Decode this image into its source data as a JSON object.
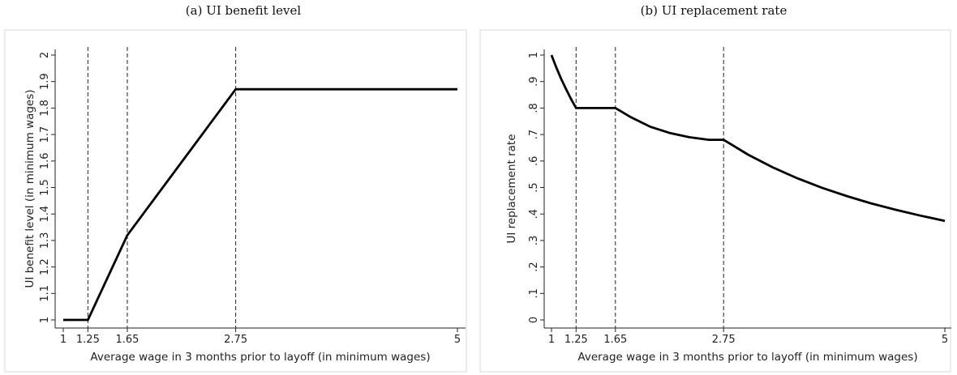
{
  "chart_data": [
    {
      "type": "line",
      "title": "(a) UI benefit level",
      "xlabel": "Average wage in 3 months prior to layoff (in minimum wages)",
      "ylabel": "UI benefit level (in minimum wages)",
      "xlim": [
        1,
        5
      ],
      "ylim": [
        1,
        2
      ],
      "x_ticks": [
        "1",
        "1.25",
        "1.65",
        "2.75",
        "5"
      ],
      "y_ticks": [
        "1",
        "1.1",
        "1.2",
        "1.3",
        "1.4",
        "1.5",
        "1.6",
        "1.7",
        "1.8",
        "1.9",
        "2"
      ],
      "vlines": [
        1.25,
        1.65,
        2.75
      ],
      "grid": false,
      "series": [
        {
          "points": [
            [
              1,
              1.0
            ],
            [
              1.25,
              1.0
            ],
            [
              1.65,
              1.32
            ],
            [
              2.75,
              1.871
            ],
            [
              5,
              1.871
            ]
          ]
        }
      ]
    },
    {
      "type": "line",
      "title": "(b) UI replacement rate",
      "xlabel": "Average wage in 3 months prior to layoff (in minimum wages)",
      "ylabel": "UI replacement rate",
      "xlim": [
        1,
        5
      ],
      "ylim": [
        0,
        1
      ],
      "x_ticks": [
        "1",
        "1.25",
        "1.65",
        "2.75",
        "5"
      ],
      "y_ticks": [
        "0",
        ".1",
        ".2",
        ".3",
        ".4",
        ".5",
        ".6",
        ".7",
        ".8",
        ".9",
        "1"
      ],
      "vlines": [
        1.25,
        1.65,
        2.75
      ],
      "grid": false,
      "series": [
        {
          "points": [
            [
              1,
              1.0
            ],
            [
              1.05,
              0.952
            ],
            [
              1.1,
              0.909
            ],
            [
              1.15,
              0.87
            ],
            [
              1.2,
              0.833
            ],
            [
              1.25,
              0.8
            ],
            [
              1.65,
              0.8
            ],
            [
              1.8,
              0.767
            ],
            [
              2.0,
              0.73
            ],
            [
              2.2,
              0.706
            ],
            [
              2.4,
              0.69
            ],
            [
              2.6,
              0.68
            ],
            [
              2.75,
              0.68
            ],
            [
              3.0,
              0.624
            ],
            [
              3.25,
              0.576
            ],
            [
              3.5,
              0.535
            ],
            [
              3.75,
              0.499
            ],
            [
              4.0,
              0.468
            ],
            [
              4.25,
              0.44
            ],
            [
              4.5,
              0.416
            ],
            [
              4.75,
              0.394
            ],
            [
              5.0,
              0.374
            ]
          ]
        }
      ]
    }
  ]
}
